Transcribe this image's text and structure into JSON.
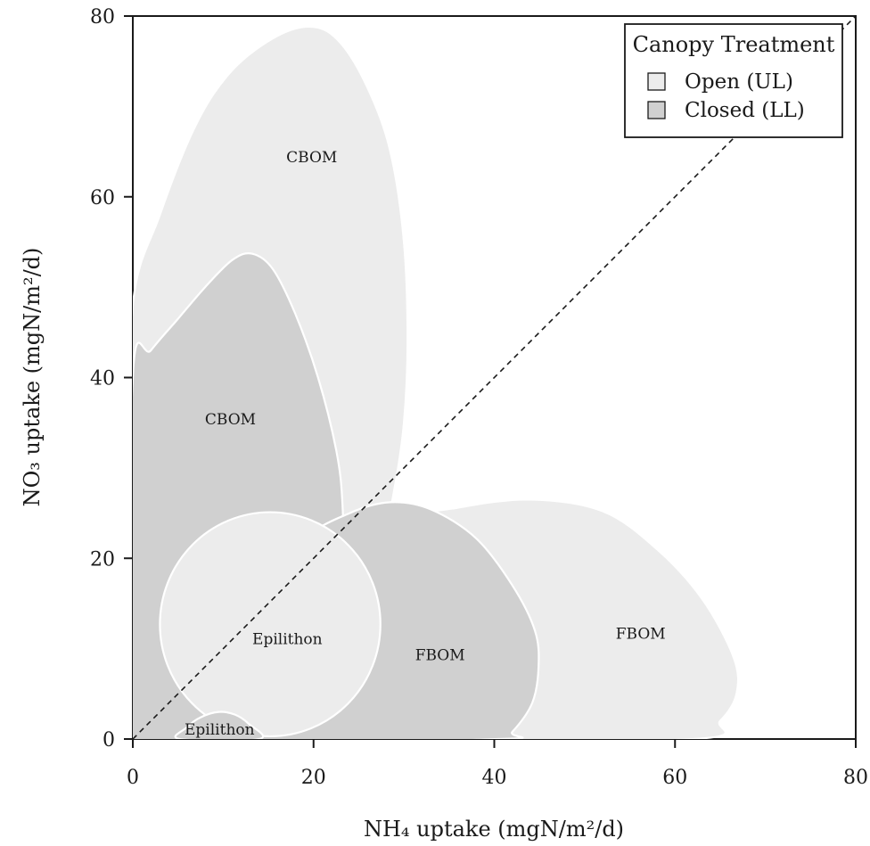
{
  "chart_data": {
    "type": "area",
    "xlabel": "NH₄ uptake (mgN/m²/d)",
    "ylabel": "NO₃ uptake (mgN/m²/d)",
    "xlim": [
      0,
      80
    ],
    "ylim": [
      0,
      80
    ],
    "x_ticks": [
      "0",
      "20",
      "40",
      "60",
      "80"
    ],
    "y_ticks": [
      "0",
      "20",
      "40",
      "60",
      "80"
    ],
    "reference_line": "1:1",
    "grid": false,
    "legend": {
      "title": "Canopy Treatment",
      "position": "top-right",
      "entries": [
        {
          "label": "Open (UL)",
          "color": "#ececec"
        },
        {
          "label": "Closed (LL)",
          "color": "#d0d0d0"
        }
      ]
    },
    "regions": [
      {
        "label": "CBOM",
        "treatment": "Open (UL)",
        "color": "#ececec",
        "label_at": [
          19.8,
          64.4
        ],
        "outline": [
          [
            0,
            48
          ],
          [
            3,
            58
          ],
          [
            7,
            68
          ],
          [
            11,
            74
          ],
          [
            16,
            77.8
          ],
          [
            20,
            78.8
          ],
          [
            23,
            77
          ],
          [
            26,
            72
          ],
          [
            28.5,
            65
          ],
          [
            30,
            55
          ],
          [
            30.4,
            44
          ],
          [
            30,
            35
          ],
          [
            29,
            28
          ],
          [
            28,
            24
          ],
          [
            26,
            23
          ],
          [
            23,
            23
          ],
          [
            20,
            23.5
          ],
          [
            17,
            24
          ],
          [
            14,
            24
          ],
          [
            11,
            24
          ],
          [
            7,
            25
          ],
          [
            3,
            26
          ],
          [
            0,
            27
          ]
        ]
      },
      {
        "label": "FBOM",
        "treatment": "Open (UL)",
        "color": "#ececec",
        "label_at": [
          56.2,
          11.7
        ],
        "outline": [
          [
            30,
            24
          ],
          [
            36,
            25.6
          ],
          [
            44,
            26.5
          ],
          [
            52,
            25.2
          ],
          [
            58,
            21
          ],
          [
            63,
            15.5
          ],
          [
            66.5,
            9
          ],
          [
            66.8,
            5
          ],
          [
            65,
            2
          ],
          [
            62,
            0
          ],
          [
            27,
            0
          ],
          [
            27,
            10
          ],
          [
            28,
            18
          ]
        ]
      },
      {
        "label": "CBOM",
        "treatment": "Closed (LL)",
        "color": "#d0d0d0",
        "label_at": [
          10.8,
          35.4
        ],
        "outline": [
          [
            0,
            40
          ],
          [
            2,
            43
          ],
          [
            5,
            46.5
          ],
          [
            8,
            50
          ],
          [
            11,
            53
          ],
          [
            13.2,
            53.7
          ],
          [
            15.5,
            52
          ],
          [
            18,
            47
          ],
          [
            20.5,
            40
          ],
          [
            22.5,
            32
          ],
          [
            23.2,
            26
          ],
          [
            23.2,
            18
          ],
          [
            22,
            10
          ],
          [
            20,
            5
          ],
          [
            16,
            1.8
          ],
          [
            12,
            0
          ],
          [
            0,
            0
          ]
        ]
      },
      {
        "label": "FBOM",
        "treatment": "Closed (LL)",
        "color": "#d0d0d0",
        "label_at": [
          34,
          9.3
        ],
        "outline": [
          [
            19,
            22
          ],
          [
            24,
            25
          ],
          [
            28.5,
            26.2
          ],
          [
            33,
            25.4
          ],
          [
            38,
            22.2
          ],
          [
            42,
            17
          ],
          [
            44.5,
            12
          ],
          [
            44.9,
            8
          ],
          [
            44.2,
            4
          ],
          [
            42,
            0.8
          ],
          [
            40.5,
            0
          ],
          [
            10,
            0
          ],
          [
            12,
            8
          ],
          [
            15,
            15
          ]
        ]
      },
      {
        "label": "Epilithon",
        "treatment": "Open (UL)",
        "color": "#ececec",
        "label_at": [
          17.1,
          11.1
        ],
        "ellipse": {
          "center": [
            15.2,
            12.7
          ],
          "rx": 12.2,
          "ry": 12.4
        }
      },
      {
        "label": "Epilithon",
        "treatment": "Closed (LL)",
        "color": "#d0d0d0",
        "label_at": [
          9.6,
          1.1
        ],
        "outline": [
          [
            5.2,
            0
          ],
          [
            6,
            1.3
          ],
          [
            7.5,
            2.4
          ],
          [
            9.5,
            3
          ],
          [
            11.3,
            2.7
          ],
          [
            12.8,
            1.7
          ],
          [
            14,
            0
          ]
        ]
      }
    ]
  }
}
